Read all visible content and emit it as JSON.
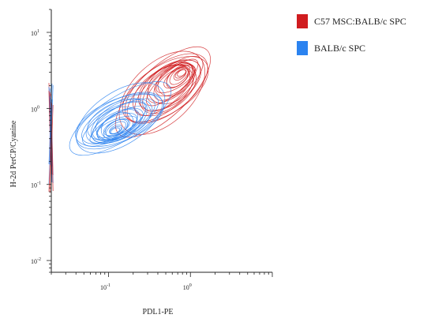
{
  "chart_data": {
    "type": "contour",
    "xlabel": "PDL1-PE",
    "ylabel": "H-2d PerCP/Cyanine",
    "x_scale": "log",
    "y_scale": "log",
    "xlim": [
      0.02,
      10
    ],
    "ylim": [
      0.007,
      20
    ],
    "x_ticks": [
      {
        "value": 0.1,
        "base": "10",
        "exp": "-1"
      },
      {
        "value": 1,
        "base": "10",
        "exp": "0"
      }
    ],
    "y_ticks": [
      {
        "value": 10,
        "base": "10",
        "exp": "1"
      },
      {
        "value": 1,
        "base": "10",
        "exp": "0"
      },
      {
        "value": 0.1,
        "base": "10",
        "exp": "-1"
      },
      {
        "value": 0.01,
        "base": "10",
        "exp": "-2"
      }
    ],
    "legend_position": "top-right",
    "series": [
      {
        "name": "C57 MSC:BALB/c SPC",
        "color": "#d01c1f",
        "peak": {
          "x": 0.8,
          "y": 3.0
        },
        "population": "shifted to higher PDL1 and higher H-2d",
        "x_range": [
          0.05,
          3.5
        ],
        "y_range": [
          0.2,
          13
        ]
      },
      {
        "name": "BALB/c SPC",
        "color": "#2b83f0",
        "peak": {
          "x": 0.12,
          "y": 0.5
        },
        "population": "lower PDL1 and lower H-2d",
        "x_range": [
          0.04,
          1.0
        ],
        "y_range": [
          0.2,
          2.5
        ]
      }
    ]
  }
}
